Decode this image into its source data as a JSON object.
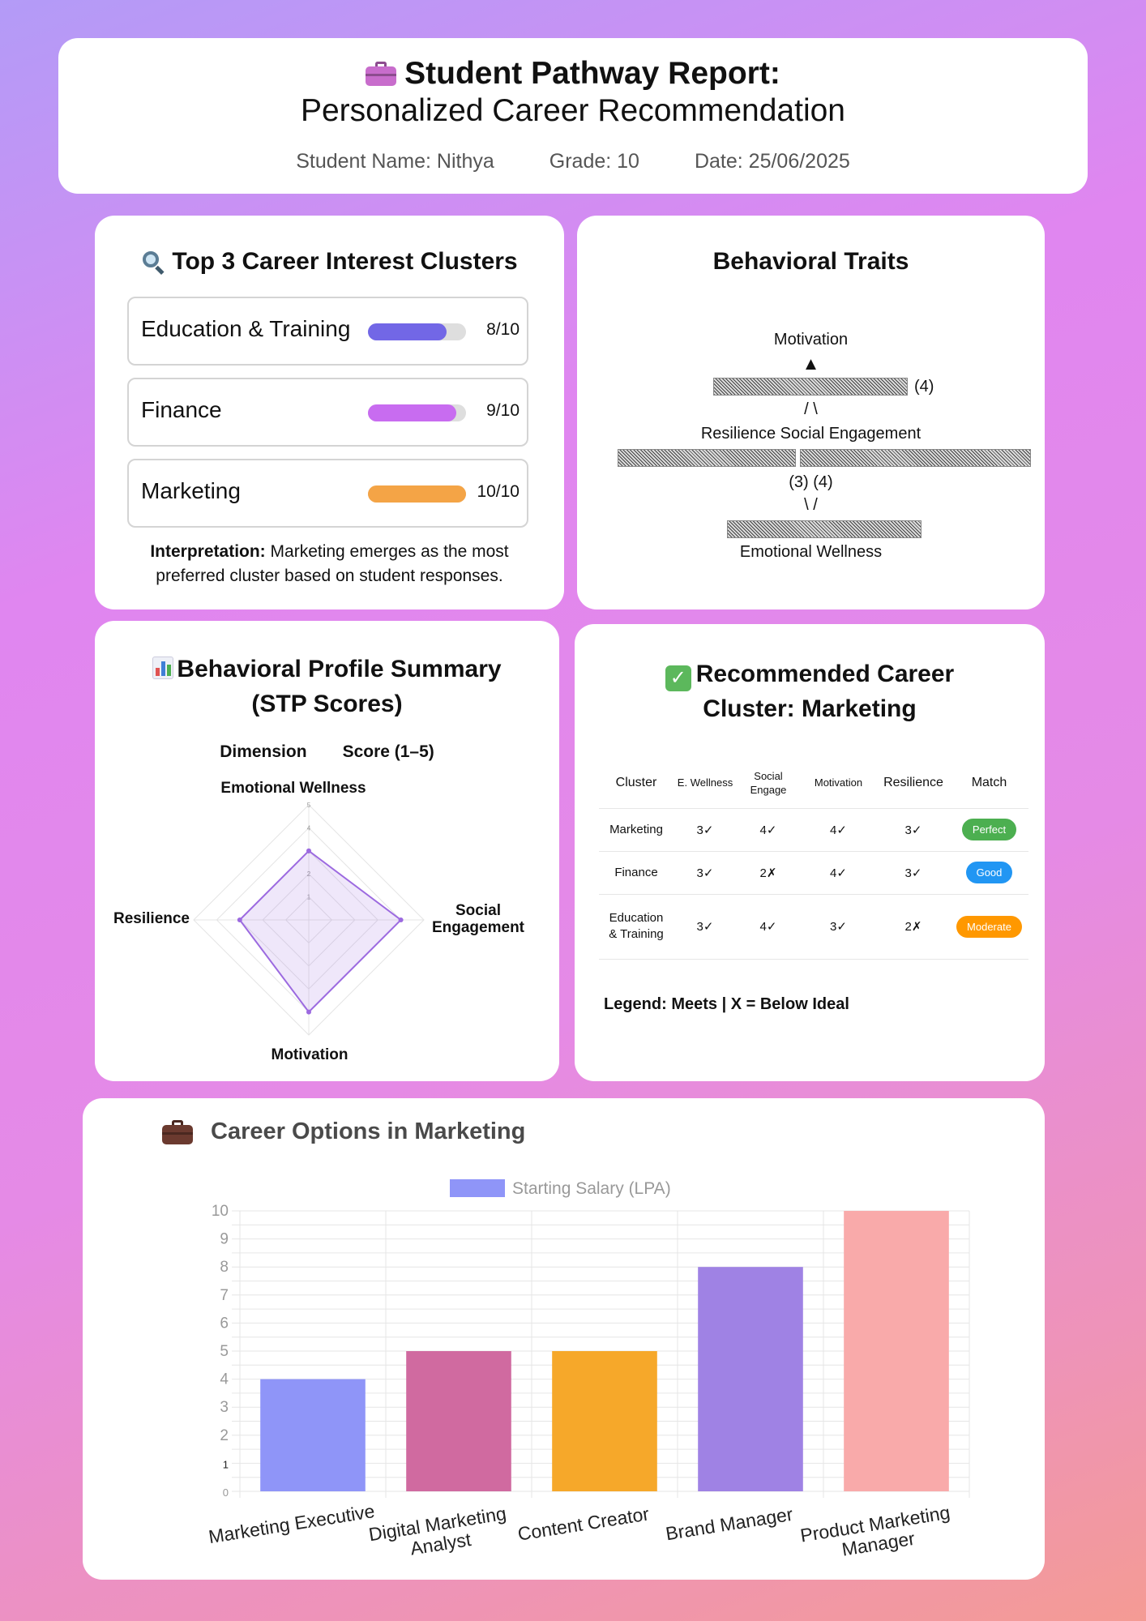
{
  "header": {
    "title": "Student Pathway Report:",
    "subtitle": "Personalized Career Recommendation",
    "student_name": "Student Name: Nithya",
    "grade": "Grade: 10",
    "date": "Date: 25/06/2025"
  },
  "clusters": {
    "title": "Top 3 Career Interest Clusters",
    "items": [
      {
        "label": "Education & Training",
        "score": "8/10",
        "value": 8,
        "color": "#7267e6"
      },
      {
        "label": "Finance",
        "score": "9/10",
        "value": 9,
        "color": "#c86cf0"
      },
      {
        "label": "Marketing",
        "score": "10/10",
        "value": 10,
        "color": "#f4a446"
      }
    ],
    "interpretation_label": "Interpretation:",
    "interpretation_text": " Marketing emerges as the most preferred cluster based on student responses."
  },
  "traits": {
    "title": "Behavioral Traits",
    "lines": {
      "motivation": "Motivation",
      "arrow": "▲",
      "score4a": "(4)",
      "slash1": "/ \\",
      "row_labels": "Resilience Social Engagement",
      "scores34": "(3) (4)",
      "slash2": "\\ /",
      "emotional": "Emotional Wellness"
    }
  },
  "profile": {
    "title_line1": "Behavioral Profile Summary",
    "title_line2": "(STP Scores)",
    "col_dimension": "Dimension",
    "col_score": "Score (1–5)",
    "radar": {
      "axes": [
        "Emotional Wellness",
        "Social Engagement",
        "Motivation",
        "Resilience"
      ],
      "values": [
        3,
        4,
        4,
        3
      ],
      "max": 5,
      "ticks": [
        "1",
        "2",
        "3",
        "4",
        "5"
      ],
      "color": "#9c6ae0"
    },
    "axis_labels": {
      "top": "Emotional Wellness",
      "right_line1": "Social",
      "right_line2": "Engagement",
      "bottom": "Motivation",
      "left": "Resilience"
    }
  },
  "recommend": {
    "title_line1": "Recommended Career",
    "title_line2": "Cluster: Marketing",
    "headers": [
      "Cluster",
      "E. Wellness",
      "Social Engage",
      "Motivation",
      "Resilience",
      "Match"
    ],
    "rows": [
      {
        "cluster": "Marketing",
        "e": "3✓",
        "s": "4✓",
        "m": "4✓",
        "r": "3✓",
        "match": "Perfect",
        "color": "#4caf50"
      },
      {
        "cluster": "Finance",
        "e": "3✓",
        "s": "2✗",
        "m": "4✓",
        "r": "3✓",
        "match": "Good",
        "color": "#2196f3"
      },
      {
        "cluster": "Education & Training",
        "e": "3✓",
        "s": "4✓",
        "m": "3✓",
        "r": "2✗",
        "match": "Moderate",
        "color": "#ff9800"
      }
    ],
    "legend": "Legend: Meets | X = Below Ideal"
  },
  "careers": {
    "title": "Career Options in Marketing"
  },
  "chart_data": {
    "type": "bar",
    "title": "",
    "legend": "Starting Salary (LPA)",
    "categories": [
      "Marketing Executive",
      "Digital Marketing Analyst",
      "Content Creator",
      "Brand Manager",
      "Product Marketing Manager"
    ],
    "category_lines": [
      [
        "Marketing Executive"
      ],
      [
        "Digital Marketing",
        "Analyst"
      ],
      [
        "Content Creator"
      ],
      [
        "Brand Manager"
      ],
      [
        "Product Marketing",
        "Manager"
      ]
    ],
    "values": [
      4,
      5,
      5,
      8,
      10
    ],
    "colors": [
      "#8f95f8",
      "#d06aa0",
      "#f6a82a",
      "#9f82e4",
      "#f9aaaa"
    ],
    "ylim": [
      0,
      10
    ],
    "yticks": [
      "0",
      "1",
      "2",
      "3",
      "4",
      "5",
      "6",
      "7",
      "8",
      "9",
      "10"
    ],
    "grid": true,
    "legend_position": "top"
  }
}
